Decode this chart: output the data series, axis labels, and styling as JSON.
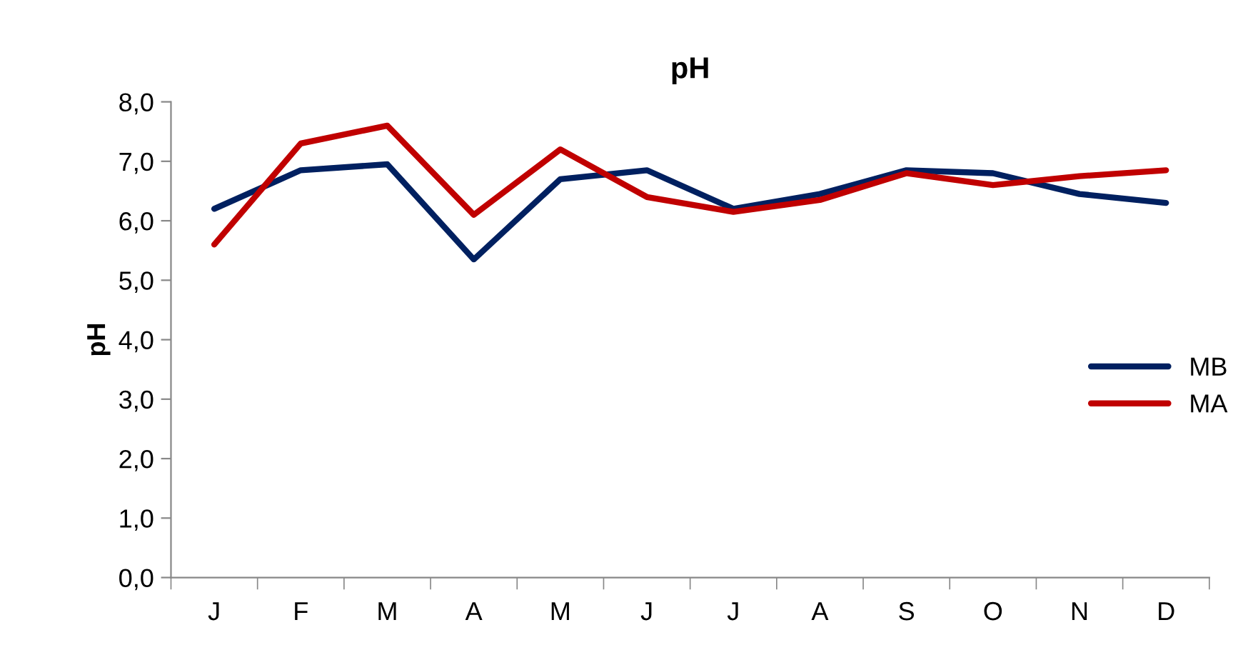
{
  "chart_data": {
    "type": "line",
    "title": "pH",
    "ylabel": "pH",
    "categories": [
      "J",
      "F",
      "M",
      "A",
      "M",
      "J",
      "J",
      "A",
      "S",
      "O",
      "N",
      "D"
    ],
    "series": [
      {
        "name": "MB",
        "color": "#002060",
        "values": [
          6.2,
          6.85,
          6.95,
          5.35,
          6.7,
          6.85,
          6.2,
          6.45,
          6.85,
          6.8,
          6.45,
          6.3
        ]
      },
      {
        "name": "MA",
        "color": "#c00000",
        "values": [
          5.6,
          7.3,
          7.6,
          6.1,
          7.2,
          6.4,
          6.15,
          6.35,
          6.8,
          6.6,
          6.75,
          6.85
        ]
      }
    ],
    "ylim": [
      0,
      8
    ],
    "yticks": [
      {
        "value": 0,
        "label": "0,0"
      },
      {
        "value": 1,
        "label": "1,0"
      },
      {
        "value": 2,
        "label": "2,0"
      },
      {
        "value": 3,
        "label": "3,0"
      },
      {
        "value": 4,
        "label": "4,0"
      },
      {
        "value": 5,
        "label": "5,0"
      },
      {
        "value": 6,
        "label": "6,0"
      },
      {
        "value": 7,
        "label": "7,0"
      },
      {
        "value": 8,
        "label": "8,0"
      }
    ],
    "legend": "right",
    "grid": false,
    "marker": "none",
    "line_style": "solid"
  }
}
